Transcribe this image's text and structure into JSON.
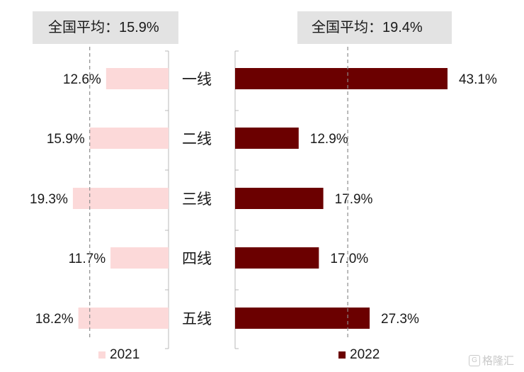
{
  "averages": {
    "left": {
      "label": "全国平均：",
      "value": "15.9%"
    },
    "right": {
      "label": "全国平均：",
      "value": "19.4%"
    }
  },
  "legend": {
    "left_label": "2021",
    "right_label": "2022"
  },
  "watermark": "格隆汇",
  "colors": {
    "series_2021": "#fcd9d9",
    "series_2022": "#6b0000",
    "average_line": "#8c8c8c",
    "axis": "#b8b8b8",
    "average_box": "#e3e3e3"
  },
  "chart_data": [
    {
      "type": "bar",
      "orientation": "horizontal",
      "direction": "right-to-left",
      "categories": [
        "一线",
        "二线",
        "三线",
        "四线",
        "五线"
      ],
      "series": [
        {
          "name": "2021",
          "values": [
            12.6,
            15.9,
            19.3,
            11.7,
            18.2
          ],
          "labels": [
            "12.6%",
            "15.9%",
            "19.3%",
            "11.7%",
            "18.2%"
          ]
        }
      ],
      "reference_line": {
        "value": 15.9,
        "style": "dashed"
      },
      "xlim": [
        0,
        20.5
      ],
      "legend": "bottom"
    },
    {
      "type": "bar",
      "orientation": "horizontal",
      "direction": "left-to-right",
      "categories": [
        "一线",
        "二线",
        "三线",
        "四线",
        "五线"
      ],
      "series": [
        {
          "name": "2022",
          "values": [
            43.1,
            12.9,
            17.9,
            17.0,
            27.3
          ],
          "labels": [
            "43.1%",
            "12.9%",
            "17.9%",
            "17.0%",
            "27.3%"
          ]
        }
      ],
      "reference_line": {
        "value": 19.4,
        "style": "dashed"
      },
      "xlim": [
        0,
        43.1
      ],
      "legend": "bottom"
    }
  ]
}
